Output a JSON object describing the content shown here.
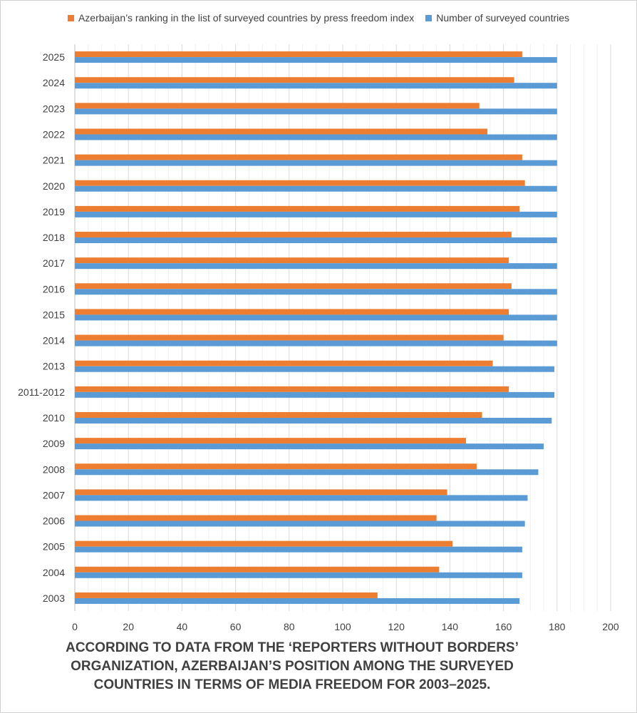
{
  "colors": {
    "ranking": "#ED7D31",
    "surveyed": "#5B9BD5",
    "grid": "#d9d9d9",
    "text": "#404040"
  },
  "chart_data": {
    "type": "bar",
    "orientation": "horizontal",
    "categories": [
      "2025",
      "2024",
      "2023",
      "2022",
      "2021",
      "2020",
      "2019",
      "2018",
      "2017",
      "2016",
      "2015",
      "2014",
      "2013",
      "2011-2012",
      "2010",
      "2009",
      "2008",
      "2007",
      "2006",
      "2005",
      "2004",
      "2003"
    ],
    "series": [
      {
        "name": "Azerbaijan’s ranking in the list of surveyed countries by press freedom index",
        "values": [
          167,
          164,
          151,
          154,
          167,
          168,
          166,
          163,
          162,
          163,
          162,
          160,
          156,
          162,
          152,
          146,
          150,
          139,
          135,
          141,
          136,
          113
        ]
      },
      {
        "name": "Number of surveyed countries",
        "values": [
          180,
          180,
          180,
          180,
          180,
          180,
          180,
          180,
          180,
          180,
          180,
          180,
          179,
          179,
          178,
          175,
          173,
          169,
          168,
          167,
          167,
          166
        ]
      }
    ],
    "xlim": [
      0,
      200
    ],
    "x_ticks": [
      "0",
      "20",
      "40",
      "60",
      "80",
      "100",
      "120",
      "140",
      "160",
      "180",
      "200"
    ],
    "grid": true,
    "legend_position": "top"
  },
  "caption": {
    "line1": "According to data from the ‘Reporters Without Borders’",
    "line2": "organization, Azerbaijan’s position among the surveyed",
    "line3": "countries in terms of media freedom for 2003–2025."
  }
}
